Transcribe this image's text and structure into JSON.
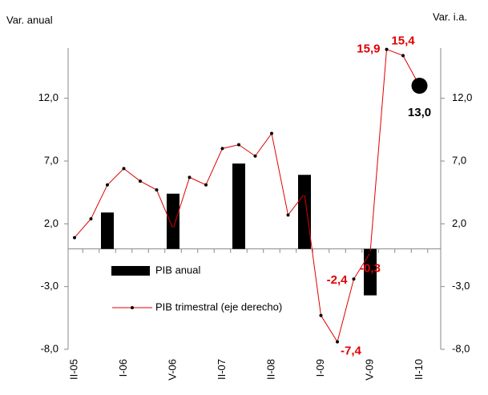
{
  "chart_data": {
    "type": "bar-line",
    "y_label": "Var. anual",
    "y2_label": "Var. i.a.",
    "categories": [
      "II-05",
      null,
      null,
      "I-06",
      null,
      null,
      "V-06",
      null,
      null,
      "II-07",
      null,
      null,
      "II-08",
      null,
      null,
      "I-09",
      null,
      null,
      "V-09",
      null,
      null,
      "II-10"
    ],
    "series": [
      {
        "name": "PIB anual",
        "type": "bar",
        "color": "#000000",
        "values": [
          null,
          null,
          2.9,
          null,
          null,
          null,
          4.4,
          null,
          null,
          null,
          6.8,
          null,
          null,
          null,
          5.9,
          null,
          null,
          null,
          -3.7,
          null,
          null,
          null
        ]
      },
      {
        "name": "PIB trimestral (eje derecho)",
        "type": "line",
        "axis": "y2",
        "color": "#e00000",
        "values": [
          0.9,
          2.4,
          5.1,
          6.4,
          5.4,
          4.7,
          1.6,
          5.7,
          5.1,
          8.0,
          8.3,
          7.4,
          9.2,
          2.7,
          4.4,
          -5.3,
          -7.4,
          -2.4,
          -0.3,
          15.9,
          15.4,
          13.0
        ],
        "value_labels": [
          null,
          null,
          null,
          null,
          null,
          null,
          null,
          null,
          null,
          null,
          null,
          null,
          null,
          null,
          null,
          null,
          "-7,4",
          "-2,4",
          "-0,3",
          "15,9",
          "15,4",
          "13,0"
        ]
      }
    ],
    "ylim": [
      -8,
      16
    ],
    "yticks": [
      {
        "value": -8,
        "label": "-8,0"
      },
      {
        "value": -3,
        "label": "-3,0"
      },
      {
        "value": 2,
        "label": "2,0"
      },
      {
        "value": 7,
        "label": "7,0"
      },
      {
        "value": 12,
        "label": "12,0"
      }
    ],
    "y2lim": [
      -8,
      16
    ],
    "y2ticks": [
      {
        "value": -8,
        "label": "-8,0"
      },
      {
        "value": -3,
        "label": "-3,0"
      },
      {
        "value": 2,
        "label": "2,0"
      },
      {
        "value": 7,
        "label": "7,0"
      },
      {
        "value": 12,
        "label": "12,0"
      }
    ]
  }
}
